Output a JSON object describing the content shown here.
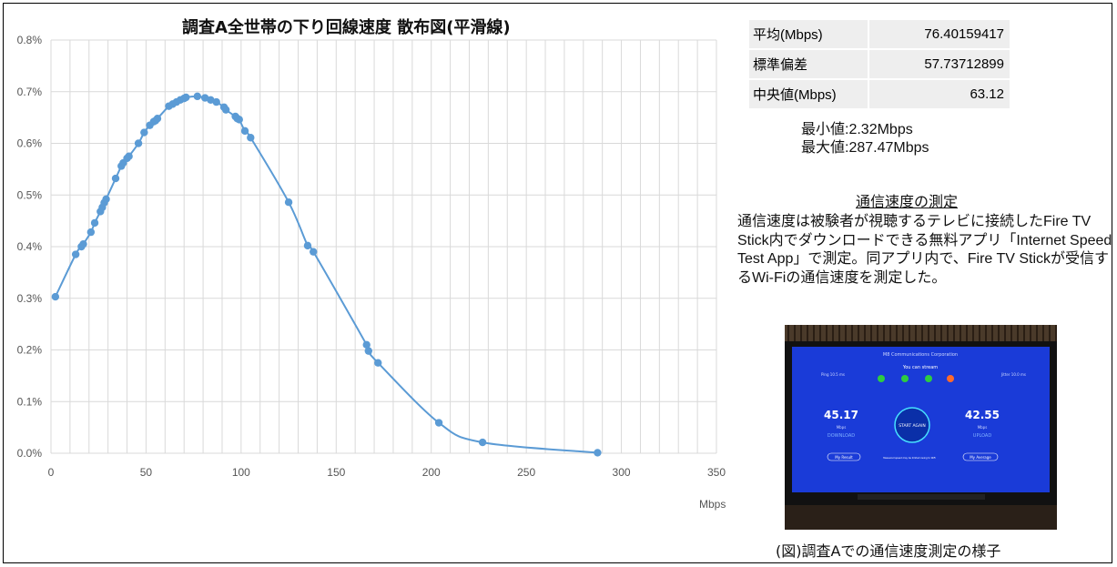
{
  "chart_data": {
    "type": "scatter",
    "title": "調査A全世帯の下り回線速度 散布図(平滑線)",
    "xlabel": "Mbps",
    "ylabel": "",
    "xlim": [
      0,
      350
    ],
    "ylim": [
      0,
      0.8
    ],
    "x_ticks": [
      "0",
      "50",
      "100",
      "150",
      "200",
      "250",
      "300",
      "350"
    ],
    "y_ticks": [
      "0.0%",
      "0.1%",
      "0.2%",
      "0.3%",
      "0.4%",
      "0.5%",
      "0.6%",
      "0.7%",
      "0.8%"
    ],
    "grid": true,
    "series": [
      {
        "x": [
          2.32,
          13,
          16,
          17,
          21,
          23,
          26,
          27,
          28,
          29,
          34,
          37,
          38,
          40,
          41,
          46,
          49,
          52,
          54,
          55,
          56,
          62,
          64,
          66,
          68,
          70,
          71,
          77,
          81,
          84,
          87,
          91,
          92,
          97,
          98,
          99,
          102,
          105,
          125,
          135,
          138,
          166,
          167,
          172,
          204,
          227,
          287.47
        ],
        "y": [
          0.303,
          0.385,
          0.4,
          0.405,
          0.428,
          0.446,
          0.468,
          0.476,
          0.485,
          0.492,
          0.532,
          0.556,
          0.562,
          0.571,
          0.575,
          0.6,
          0.621,
          0.635,
          0.642,
          0.644,
          0.648,
          0.672,
          0.676,
          0.68,
          0.684,
          0.687,
          0.689,
          0.691,
          0.688,
          0.684,
          0.68,
          0.67,
          0.665,
          0.652,
          0.648,
          0.646,
          0.624,
          0.611,
          0.486,
          0.402,
          0.39,
          0.21,
          0.198,
          0.175,
          0.059,
          0.021,
          0.001
        ]
      }
    ]
  },
  "stats": [
    {
      "label": "平均(Mbps)",
      "value": "76.40159417"
    },
    {
      "label": "標準偏差",
      "value": "57.73712899"
    },
    {
      "label": "中央値(Mbps)",
      "value": "63.12"
    }
  ],
  "min_text": "最小値:2.32Mbps",
  "max_text": "最大値:287.47Mbps",
  "method_title": "通信速度の測定",
  "method_body": "通信速度は被験者が視聴するテレビに接続したFire TV Stick内でダウンロードできる無料アプリ「Internet Speed Test App」で測定。同アプリ内で、Fire TV Stickが受信するWi-Fiの通信速度を測定した。",
  "photo": {
    "app_name": "M8 Communications Corporation",
    "status": "You can stream",
    "ping": "Ping 10.5 ms",
    "jitter": "Jitter 10.0 ms",
    "download_value": "45.17",
    "download_unit": "Mbps",
    "download_label": "DOWNLOAD",
    "upload_value": "42.55",
    "upload_unit": "Mbps",
    "upload_label": "UPLOAD",
    "start_button": "START AGAIN",
    "my_result": "My Result",
    "my_average": "My Average",
    "note": "Measured speed may be limited owing to WiFi"
  },
  "caption": "(図)調査Aでの通信速度測定の様子",
  "colors": {
    "series": "#5b9bd5",
    "grid": "#d9d9d9",
    "tv_screen": "#1a3bd8"
  }
}
